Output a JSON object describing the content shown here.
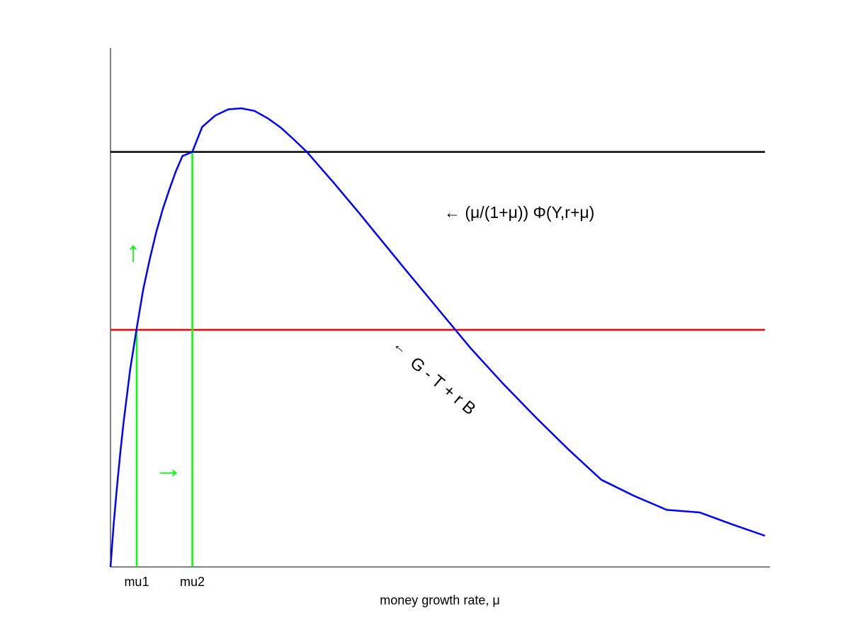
{
  "chart_data": {
    "type": "line",
    "title": "",
    "xlabel": "money growth rate, μ",
    "ylabel": "",
    "xlim": [
      0,
      1
    ],
    "ylim": [
      0,
      1
    ],
    "grid": false,
    "x_ticks": [
      {
        "value": 0.04,
        "label": "mu1"
      },
      {
        "value": 0.125,
        "label": "mu2"
      }
    ],
    "series": [
      {
        "id": "curve",
        "label": "← (μ/(1+μ)) Φ(Y,r+μ)",
        "color": "#0000ff",
        "x": [
          0,
          0.005,
          0.01,
          0.015,
          0.02,
          0.03,
          0.04,
          0.05,
          0.06,
          0.07,
          0.08,
          0.09,
          0.1,
          0.11,
          0.125,
          0.14,
          0.16,
          0.18,
          0.2,
          0.22,
          0.24,
          0.26,
          0.28,
          0.3,
          0.32,
          0.34,
          0.36,
          0.38,
          0.4,
          0.45,
          0.5,
          0.55,
          0.6,
          0.65,
          0.7,
          0.75,
          0.8,
          0.85,
          0.9,
          0.95,
          1.0
        ],
        "y": [
          0,
          0.084,
          0.155,
          0.221,
          0.279,
          0.38,
          0.46,
          0.535,
          0.593,
          0.646,
          0.69,
          0.728,
          0.763,
          0.792,
          0.8,
          0.848,
          0.87,
          0.882,
          0.884,
          0.879,
          0.865,
          0.847,
          0.824,
          0.8,
          0.771,
          0.742,
          0.712,
          0.682,
          0.651,
          0.574,
          0.498,
          0.422,
          0.353,
          0.288,
          0.226,
          0.168,
          0.137,
          0.11,
          0.105,
          0.082,
          0.06
        ]
      },
      {
        "id": "black-level",
        "label": "",
        "color": "#000000",
        "x": [
          0,
          1
        ],
        "y": [
          0.8,
          0.8
        ]
      },
      {
        "id": "red-level",
        "label": "← G - T + r B",
        "color": "#ff0000",
        "x": [
          0,
          1
        ],
        "y": [
          0.457,
          0.457
        ]
      }
    ],
    "verticals": [
      {
        "id": "mu1-line",
        "x": 0.04,
        "y_top": 0.457,
        "color": "#00ff00"
      },
      {
        "id": "mu2-line",
        "x": 0.125,
        "y_top": 0.8,
        "color": "#00ff00"
      }
    ],
    "annotations": {
      "up_arrow": "↑",
      "right_arrow": "→",
      "curve_label": "← (μ/(1+μ)) Φ(Y,r+μ)",
      "red_label_arrow": "←",
      "red_label_text": "G - T + r B"
    }
  }
}
